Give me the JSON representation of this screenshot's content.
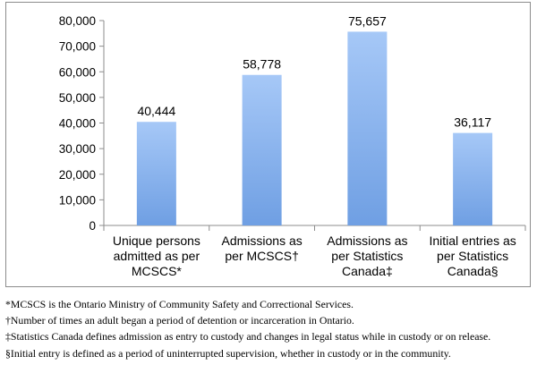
{
  "chart_data": {
    "type": "bar",
    "categories": [
      [
        "Unique persons",
        "admitted as per",
        "MCSCS*"
      ],
      [
        "Admissions as",
        "per MCSCS†"
      ],
      [
        "Admissions as",
        "per Statistics",
        "Canada‡"
      ],
      [
        "Initial entries as",
        "per Statistics",
        "Canada§"
      ]
    ],
    "values": [
      40444,
      58778,
      75657,
      36117
    ],
    "value_labels": [
      "40,444",
      "58,778",
      "75,657",
      "36,117"
    ],
    "yticks": [
      "0",
      "10,000",
      "20,000",
      "30,000",
      "40,000",
      "50,000",
      "60,000",
      "70,000",
      "80,000"
    ],
    "ylim": [
      0,
      80000
    ],
    "title": "",
    "xlabel": "",
    "ylabel": "",
    "grid": false,
    "bar_color_top": "#a6c8f7",
    "bar_color_bottom": "#6f9fe3"
  },
  "footnotes": [
    "*MCSCS is the Ontario Ministry of Community Safety and Correctional Services.",
    "†Number of times an adult began a period of detention or incarceration in Ontario.",
    "‡Statistics Canada defines admission as entry to custody and changes in legal status while in custody or on release.",
    "§Initial entry is defined as a period of uninterrupted supervision, whether in custody or in the community."
  ]
}
